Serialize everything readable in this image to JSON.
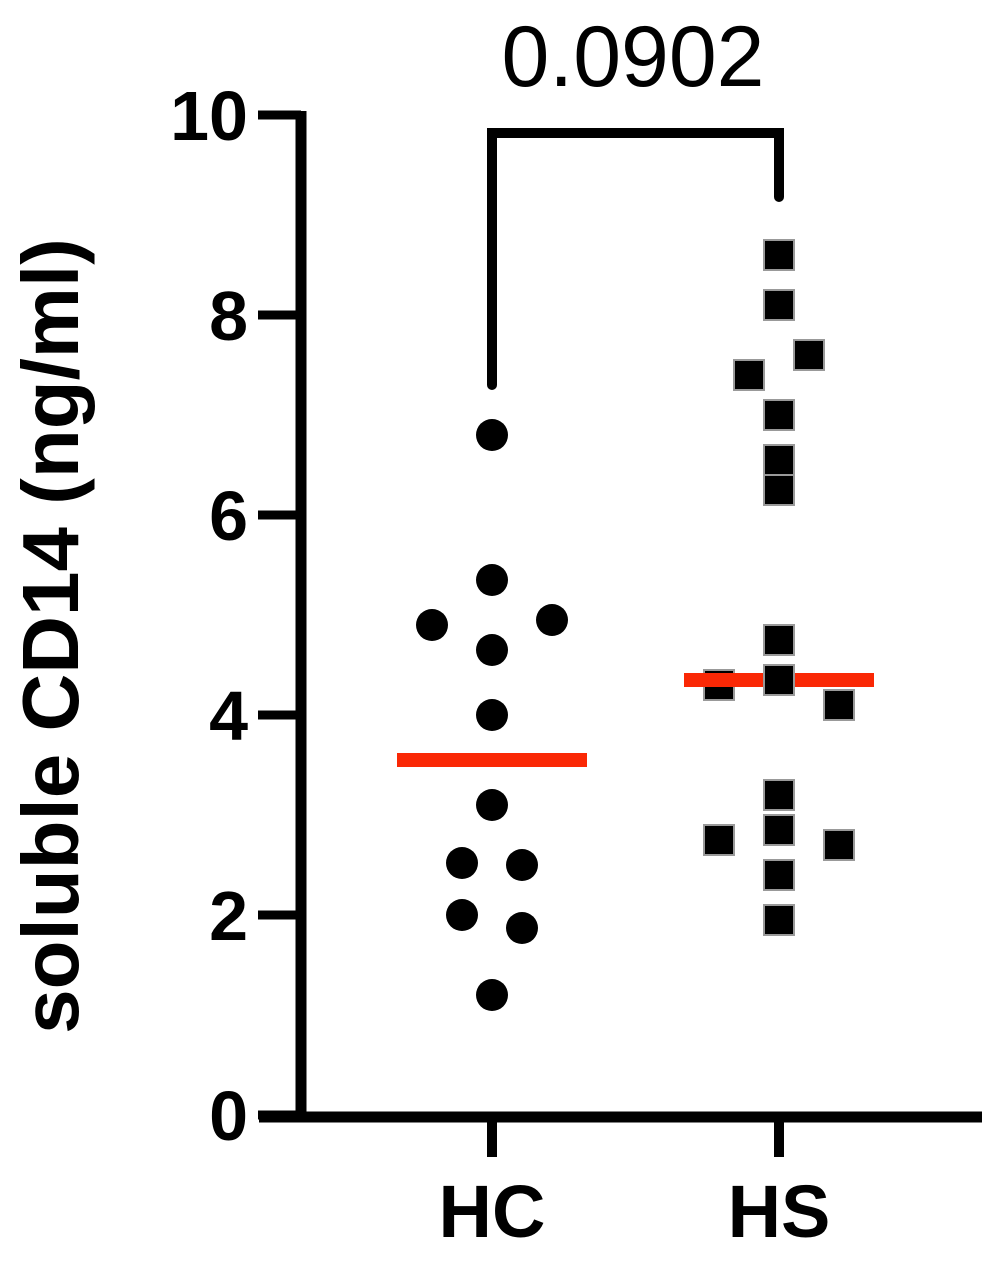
{
  "chart_data": {
    "type": "scatter",
    "subtype": "column-dot-plot",
    "title": "",
    "p_value": "0.0902",
    "ylabel": "soluble CD14 (ng/ml)",
    "xlabel": "",
    "ylim": [
      0,
      10
    ],
    "yticks": [
      0,
      2,
      4,
      6,
      8,
      10
    ],
    "grid": false,
    "legend": "none",
    "categories": [
      "HC",
      "HS"
    ],
    "colors": {
      "marker": "#000000",
      "median": "#FA2805",
      "square_edge": "#999999",
      "axis": "#000000"
    },
    "series": [
      {
        "name": "HC",
        "marker": "circle",
        "n": 12,
        "median": 3.55,
        "points": [
          {
            "v": 6.8,
            "dx": 0
          },
          {
            "v": 5.35,
            "dx": 0
          },
          {
            "v": 4.9,
            "dx": -60
          },
          {
            "v": 4.95,
            "dx": 60
          },
          {
            "v": 4.65,
            "dx": 0
          },
          {
            "v": 4.0,
            "dx": 0
          },
          {
            "v": 3.1,
            "dx": 0
          },
          {
            "v": 2.52,
            "dx": -30
          },
          {
            "v": 2.5,
            "dx": 30
          },
          {
            "v": 2.0,
            "dx": -30
          },
          {
            "v": 1.87,
            "dx": 30
          },
          {
            "v": 1.2,
            "dx": 0
          }
        ]
      },
      {
        "name": "HS",
        "marker": "square",
        "n": 17,
        "median": 4.35,
        "points": [
          {
            "v": 8.6,
            "dx": 0
          },
          {
            "v": 8.1,
            "dx": 0
          },
          {
            "v": 7.6,
            "dx": 30
          },
          {
            "v": 7.4,
            "dx": -30
          },
          {
            "v": 7.0,
            "dx": 0
          },
          {
            "v": 6.55,
            "dx": 0
          },
          {
            "v": 6.25,
            "dx": 0
          },
          {
            "v": 4.75,
            "dx": 0
          },
          {
            "v": 4.35,
            "dx": 0,
            "front": true
          },
          {
            "v": 4.3,
            "dx": -60
          },
          {
            "v": 4.1,
            "dx": 60
          },
          {
            "v": 3.2,
            "dx": 0
          },
          {
            "v": 2.85,
            "dx": 0
          },
          {
            "v": 2.75,
            "dx": -60
          },
          {
            "v": 2.7,
            "dx": 60
          },
          {
            "v": 2.4,
            "dx": 0
          },
          {
            "v": 1.95,
            "dx": 0
          }
        ]
      }
    ]
  }
}
